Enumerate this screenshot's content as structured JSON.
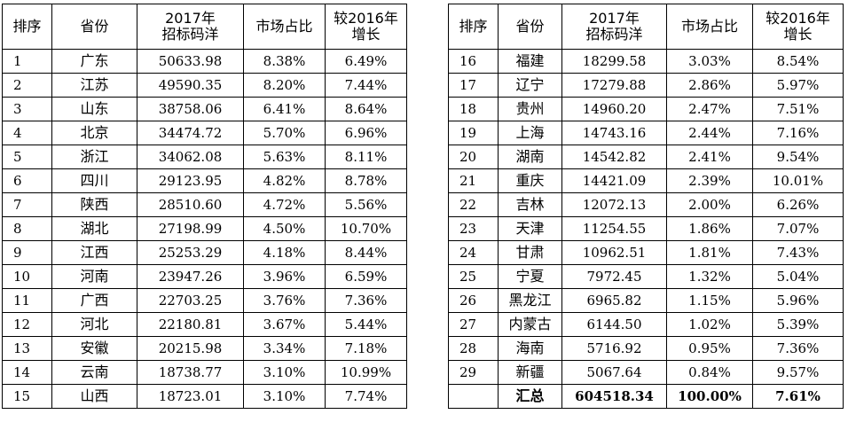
{
  "headers": {
    "rank": "排序",
    "province": "省份",
    "amount_line1": "2017年",
    "amount_line2": "招标码洋",
    "share": "市场占比",
    "growth_line1": "较2016年",
    "growth_line2": "增长"
  },
  "left_rows": [
    {
      "rank": "1",
      "province": "广东",
      "amount": "50633.98",
      "share": "8.38%",
      "growth": "6.49%"
    },
    {
      "rank": "2",
      "province": "江苏",
      "amount": "49590.35",
      "share": "8.20%",
      "growth": "7.44%"
    },
    {
      "rank": "3",
      "province": "山东",
      "amount": "38758.06",
      "share": "6.41%",
      "growth": "8.64%"
    },
    {
      "rank": "4",
      "province": "北京",
      "amount": "34474.72",
      "share": "5.70%",
      "growth": "6.96%"
    },
    {
      "rank": "5",
      "province": "浙江",
      "amount": "34062.08",
      "share": "5.63%",
      "growth": "8.11%"
    },
    {
      "rank": "6",
      "province": "四川",
      "amount": "29123.95",
      "share": "4.82%",
      "growth": "8.78%"
    },
    {
      "rank": "7",
      "province": "陕西",
      "amount": "28510.60",
      "share": "4.72%",
      "growth": "5.56%"
    },
    {
      "rank": "8",
      "province": "湖北",
      "amount": "27198.99",
      "share": "4.50%",
      "growth": "10.70%"
    },
    {
      "rank": "9",
      "province": "江西",
      "amount": "25253.29",
      "share": "4.18%",
      "growth": "8.44%"
    },
    {
      "rank": "10",
      "province": "河南",
      "amount": "23947.26",
      "share": "3.96%",
      "growth": "6.59%"
    },
    {
      "rank": "11",
      "province": "广西",
      "amount": "22703.25",
      "share": "3.76%",
      "growth": "7.36%"
    },
    {
      "rank": "12",
      "province": "河北",
      "amount": "22180.81",
      "share": "3.67%",
      "growth": "5.44%"
    },
    {
      "rank": "13",
      "province": "安徽",
      "amount": "20215.98",
      "share": "3.34%",
      "growth": "7.18%"
    },
    {
      "rank": "14",
      "province": "云南",
      "amount": "18738.77",
      "share": "3.10%",
      "growth": "10.99%"
    },
    {
      "rank": "15",
      "province": "山西",
      "amount": "18723.01",
      "share": "3.10%",
      "growth": "7.74%"
    }
  ],
  "right_rows": [
    {
      "rank": "16",
      "province": "福建",
      "amount": "18299.58",
      "share": "3.03%",
      "growth": "8.54%"
    },
    {
      "rank": "17",
      "province": "辽宁",
      "amount": "17279.88",
      "share": "2.86%",
      "growth": "5.97%"
    },
    {
      "rank": "18",
      "province": "贵州",
      "amount": "14960.20",
      "share": "2.47%",
      "growth": "7.51%"
    },
    {
      "rank": "19",
      "province": "上海",
      "amount": "14743.16",
      "share": "2.44%",
      "growth": "7.16%"
    },
    {
      "rank": "20",
      "province": "湖南",
      "amount": "14542.82",
      "share": "2.41%",
      "growth": "9.54%"
    },
    {
      "rank": "21",
      "province": "重庆",
      "amount": "14421.09",
      "share": "2.39%",
      "growth": "10.01%"
    },
    {
      "rank": "22",
      "province": "吉林",
      "amount": "12072.13",
      "share": "2.00%",
      "growth": "6.26%"
    },
    {
      "rank": "23",
      "province": "天津",
      "amount": "11254.55",
      "share": "1.86%",
      "growth": "7.07%"
    },
    {
      "rank": "24",
      "province": "甘肃",
      "amount": "10962.51",
      "share": "1.81%",
      "growth": "7.43%"
    },
    {
      "rank": "25",
      "province": "宁夏",
      "amount": "7972.45",
      "share": "1.32%",
      "growth": "5.04%"
    },
    {
      "rank": "26",
      "province": "黑龙江",
      "amount": "6965.82",
      "share": "1.15%",
      "growth": "5.96%"
    },
    {
      "rank": "27",
      "province": "内蒙古",
      "amount": "6144.50",
      "share": "1.02%",
      "growth": "5.39%"
    },
    {
      "rank": "28",
      "province": "海南",
      "amount": "5716.92",
      "share": "0.95%",
      "growth": "7.36%"
    },
    {
      "rank": "29",
      "province": "新疆",
      "amount": "5067.64",
      "share": "0.84%",
      "growth": "9.57%"
    }
  ],
  "total": {
    "rank": "",
    "province": "汇总",
    "amount": "604518.34",
    "share": "100.00%",
    "growth": "7.61%"
  }
}
